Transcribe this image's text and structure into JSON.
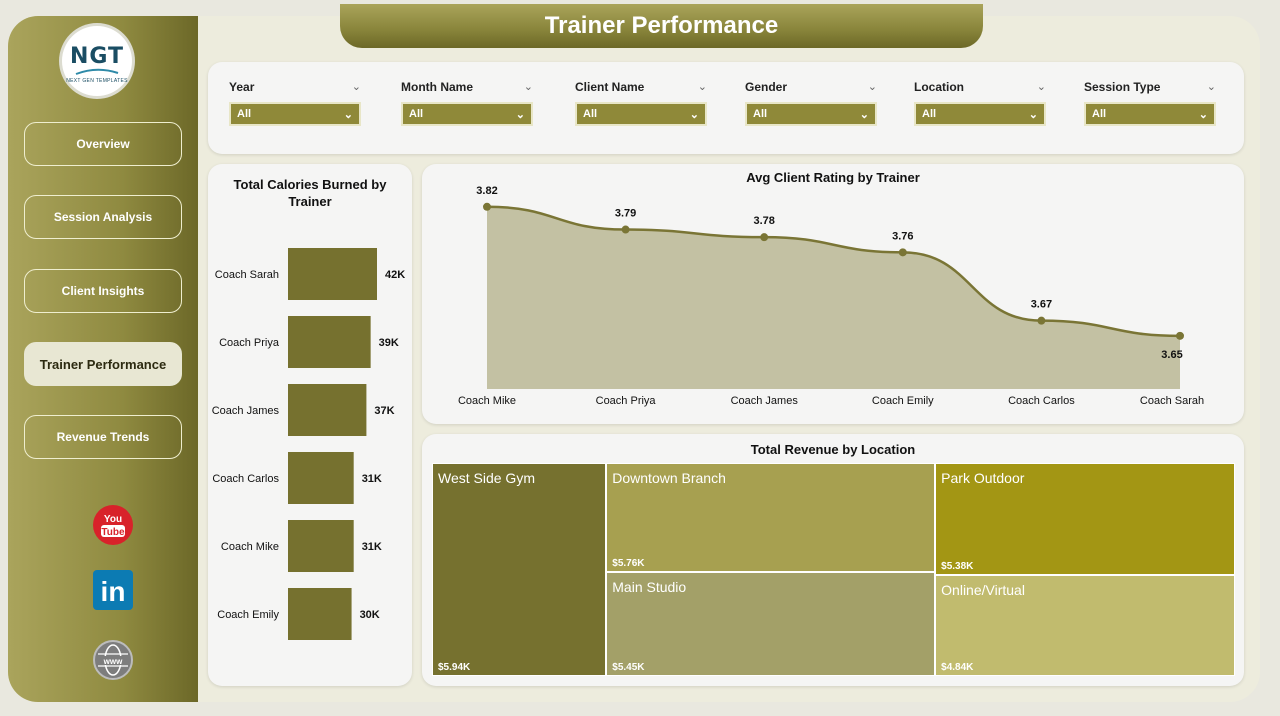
{
  "title": "Trainer Performance",
  "logo": {
    "text": "NGT",
    "subtext": "NEXT GEN TEMPLATES"
  },
  "nav": [
    {
      "label": "Overview",
      "active": false
    },
    {
      "label": "Session Analysis",
      "active": false
    },
    {
      "label": "Client Insights",
      "active": false
    },
    {
      "label": "Trainer Performance",
      "active": true
    },
    {
      "label": "Revenue Trends",
      "active": false
    }
  ],
  "social": [
    {
      "icon": "youtube-icon",
      "text": "You Tube"
    },
    {
      "icon": "linkedin-icon",
      "text": "in"
    },
    {
      "icon": "globe-icon",
      "text": "www"
    }
  ],
  "filters": [
    {
      "label": "Year",
      "value": "All"
    },
    {
      "label": "Month Name",
      "value": "All"
    },
    {
      "label": "Client Name",
      "value": "All"
    },
    {
      "label": "Gender",
      "value": "All"
    },
    {
      "label": "Location",
      "value": "All"
    },
    {
      "label": "Session Type",
      "value": "All"
    }
  ],
  "colors": {
    "bar": "#76712f",
    "line": "#7a7535",
    "area": "#c3c1a3",
    "filter_bg": "#8f8939"
  },
  "chart_data": [
    {
      "type": "bar",
      "orientation": "horizontal",
      "title": "Total Calories Burned by Trainer",
      "categories": [
        "Coach Sarah",
        "Coach Priya",
        "Coach James",
        "Coach Carlos",
        "Coach Mike",
        "Coach Emily"
      ],
      "values": [
        42000,
        39000,
        37000,
        31000,
        31000,
        30000
      ],
      "value_labels": [
        "42K",
        "39K",
        "37K",
        "31K",
        "31K",
        "30K"
      ]
    },
    {
      "type": "area",
      "title": "Avg Client Rating by Trainer",
      "categories": [
        "Coach Mike",
        "Coach Priya",
        "Coach James",
        "Coach Emily",
        "Coach Carlos",
        "Coach Sarah"
      ],
      "values": [
        3.82,
        3.79,
        3.78,
        3.76,
        3.67,
        3.65
      ],
      "value_labels": [
        "3.82",
        "3.79",
        "3.78",
        "3.76",
        "3.67",
        "3.65"
      ],
      "ylim": [
        3.58,
        3.85
      ]
    },
    {
      "type": "treemap",
      "title": "Total Revenue by Location",
      "items": [
        {
          "name": "West Side Gym",
          "value": 5940,
          "label": "$5.94K",
          "color": "#76712f"
        },
        {
          "name": "Downtown Branch",
          "value": 5760,
          "label": "$5.76K",
          "color": "#a7a050"
        },
        {
          "name": "Main Studio",
          "value": 5450,
          "label": "$5.45K",
          "color": "#a3a068"
        },
        {
          "name": "Park Outdoor",
          "value": 5380,
          "label": "$5.38K",
          "color": "#a39614"
        },
        {
          "name": "Online/Virtual",
          "value": 4840,
          "label": "$4.84K",
          "color": "#c1bb6e"
        }
      ]
    }
  ]
}
